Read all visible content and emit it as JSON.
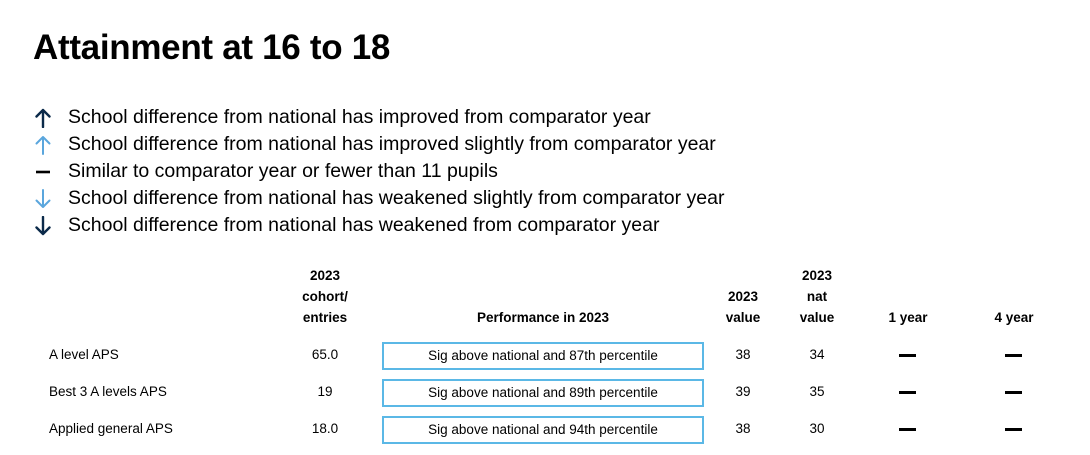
{
  "title": "Attainment at 16 to 18",
  "legend": [
    {
      "icon": "arrow-up-dark-icon",
      "color": "#0b2a4a",
      "text": "School difference from national has improved from comparator year"
    },
    {
      "icon": "arrow-up-light-icon",
      "color": "#5aa6dd",
      "text": "School difference from national has improved slightly from comparator year"
    },
    {
      "icon": "dash-icon",
      "color": "#000000",
      "text": "Similar to comparator year or fewer than 11 pupils"
    },
    {
      "icon": "arrow-down-light-icon",
      "color": "#5aa6dd",
      "text": "School difference from national has weakened slightly from comparator year"
    },
    {
      "icon": "arrow-down-dark-icon",
      "color": "#0b2a4a",
      "text": "School difference from national has weakened from comparator year"
    }
  ],
  "table": {
    "headers": {
      "cohort": [
        "2023",
        "cohort/",
        "entries"
      ],
      "performance": "Performance in 2023",
      "value": [
        "2023",
        "value"
      ],
      "nat_value": [
        "2023",
        "nat",
        "value"
      ],
      "one_year": "1 year",
      "four_year": "4 year"
    },
    "rows": [
      {
        "label": "A level APS",
        "cohort": "65.0",
        "performance": "Sig above national and 87th percentile",
        "value": "38",
        "nat_value": "34",
        "one_year": "dash-icon",
        "four_year": "dash-icon"
      },
      {
        "label": "Best 3 A levels APS",
        "cohort": "19",
        "performance": "Sig above national and 89th percentile",
        "value": "39",
        "nat_value": "35",
        "one_year": "dash-icon",
        "four_year": "dash-icon"
      },
      {
        "label": "Applied general APS",
        "cohort": "18.0",
        "performance": "Sig above national and 94th percentile",
        "value": "38",
        "nat_value": "30",
        "one_year": "dash-icon",
        "four_year": "dash-icon"
      }
    ],
    "box_border_color": "#5bb8e6"
  }
}
